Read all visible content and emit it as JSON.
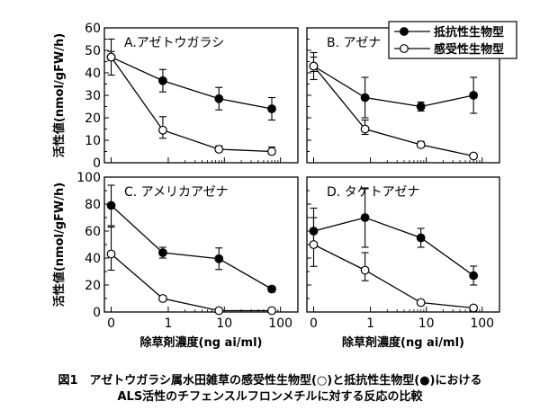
{
  "figure": {
    "caption_line1": "図1　アゼトウガラシ属水田雑草の感受性生物型(○)と抵抗性生物型(●)における",
    "caption_line2": "ALS活性のチフェンスルフロンメチルに対する反応の比較"
  },
  "legend": {
    "resistant": "抵抗性生物型",
    "susceptible": "感受性生物型"
  },
  "chart_data": [
    {
      "type": "line",
      "title": "A.アゼトウガラシ",
      "xlabel": "",
      "ylabel": "活性値(nmol/gFW/h)",
      "xscale": "log with zero at left",
      "x_ticks": [
        "0",
        "1",
        "10",
        "100"
      ],
      "ylim": [
        0,
        60
      ],
      "y_ticks": [
        "0",
        "10",
        "20",
        "30",
        "40",
        "50",
        "60"
      ],
      "x": [
        0,
        0.8,
        8,
        70
      ],
      "series": [
        {
          "name": "抵抗性生物型",
          "marker": "filled-circle",
          "values": [
            47,
            36.5,
            28.5,
            24
          ],
          "error": [
            8,
            5,
            5,
            5
          ]
        },
        {
          "name": "感受性生物型",
          "marker": "open-circle",
          "values": [
            47,
            14.5,
            6,
            5
          ],
          "error": [
            2.5,
            6,
            1.5,
            2
          ]
        }
      ]
    },
    {
      "type": "line",
      "title": "B. アゼナ",
      "xlabel": "",
      "ylabel": "",
      "xscale": "log with zero at left",
      "x_ticks": [
        "0",
        "1",
        "10",
        "100"
      ],
      "ylim": [
        0,
        60
      ],
      "y_ticks": [],
      "x": [
        0,
        0.8,
        8,
        70
      ],
      "series": [
        {
          "name": "抵抗性生物型",
          "marker": "filled-circle",
          "values": [
            43,
            29,
            25,
            30
          ],
          "error": [
            6,
            9,
            2,
            8
          ]
        },
        {
          "name": "感受性生物型",
          "marker": "open-circle",
          "values": [
            43,
            15,
            8,
            3
          ],
          "error": [
            4,
            4,
            1.5,
            1
          ]
        }
      ],
      "legend_position": "top-right"
    },
    {
      "type": "line",
      "title": "C. アメリカアゼナ",
      "xlabel": "除草剤濃度(ng ai/ml)",
      "ylabel": "活性値(nmol/gFW/h)",
      "xscale": "log with zero at left",
      "x_ticks": [
        "0",
        "1",
        "10",
        "100"
      ],
      "ylim": [
        0,
        100
      ],
      "y_ticks": [
        "0",
        "20",
        "40",
        "60",
        "80",
        "100"
      ],
      "x": [
        0,
        0.8,
        8,
        70
      ],
      "series": [
        {
          "name": "抵抗性生物型",
          "marker": "filled-circle",
          "values": [
            79,
            44,
            39.5,
            17
          ],
          "error": [
            15,
            4,
            8,
            2
          ]
        },
        {
          "name": "感受性生物型",
          "marker": "open-circle",
          "values": [
            43,
            10,
            1,
            1
          ],
          "error": [
            20,
            2,
            0.5,
            0.5
          ]
        }
      ]
    },
    {
      "type": "line",
      "title": "D. タケトアゼナ",
      "xlabel": "除草剤濃度(ng ai/ml)",
      "ylabel": "",
      "xscale": "log with zero at left",
      "x_ticks": [
        "0",
        "1",
        "10",
        "100"
      ],
      "ylim": [
        0,
        100
      ],
      "y_ticks": [],
      "x": [
        0,
        0.8,
        8,
        70
      ],
      "series": [
        {
          "name": "抵抗性生物型",
          "marker": "filled-circle",
          "values": [
            60,
            70,
            55,
            27
          ],
          "error": [
            10,
            22,
            7,
            7
          ]
        },
        {
          "name": "感受性生物型",
          "marker": "open-circle",
          "values": [
            50,
            31,
            7,
            3
          ],
          "error": [
            27,
            13,
            1.5,
            1
          ]
        }
      ]
    }
  ]
}
